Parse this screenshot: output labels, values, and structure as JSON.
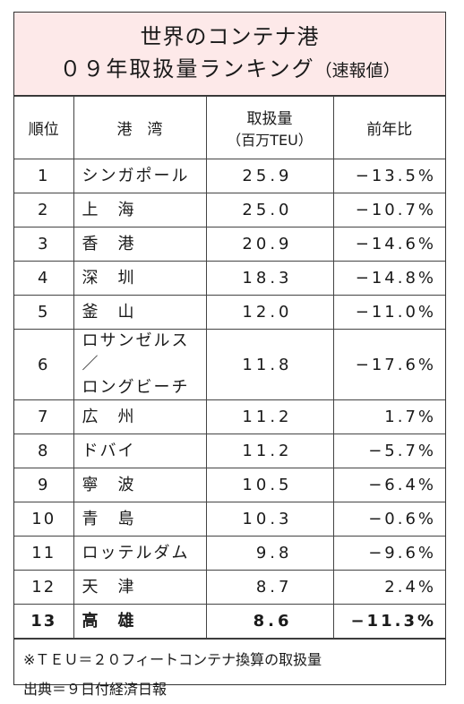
{
  "title": {
    "line1": "世界のコンテナ港",
    "line2_main": "０９年取扱量ランキング",
    "line2_sub": "（速報値）"
  },
  "columns": {
    "rank": "順位",
    "port": "港　湾",
    "teu": "取扱量",
    "teu_unit": "（百万TEU）",
    "yoy": "前年比"
  },
  "rows": [
    {
      "rank": "1",
      "port": "シンガポール",
      "teu": "25.9",
      "yoy": "−13.5%"
    },
    {
      "rank": "2",
      "port": "上　海",
      "teu": "25.0",
      "yoy": "−10.7%"
    },
    {
      "rank": "3",
      "port": "香　港",
      "teu": "20.9",
      "yoy": "−14.6%"
    },
    {
      "rank": "4",
      "port": "深　圳",
      "teu": "18.3",
      "yoy": "−14.8%"
    },
    {
      "rank": "5",
      "port": "釜　山",
      "teu": "12.0",
      "yoy": "−11.0%"
    },
    {
      "rank": "6",
      "port": "ロサンゼルス／",
      "port2": "ロングビーチ",
      "teu": "11.8",
      "yoy": "−17.6%"
    },
    {
      "rank": "7",
      "port": "広　州",
      "teu": "11.2",
      "yoy": "1.7%"
    },
    {
      "rank": "8",
      "port": "ドバイ",
      "teu": "11.2",
      "yoy": "−5.7%"
    },
    {
      "rank": "9",
      "port": "寧　波",
      "teu": "10.5",
      "yoy": "−6.4%"
    },
    {
      "rank": "10",
      "port": "青　島",
      "teu": "10.3",
      "yoy": "−0.6%"
    },
    {
      "rank": "11",
      "port": "ロッテルダム",
      "teu": "9.8",
      "yoy": "−9.6%"
    },
    {
      "rank": "12",
      "port": "天　津",
      "teu": "8.7",
      "yoy": "2.4%"
    },
    {
      "rank": "13",
      "port": "高　雄",
      "teu": "8.6",
      "yoy": "−11.3%"
    }
  ],
  "notes": {
    "line1": "※ＴＥＵ＝２０フィートコンテナ換算の取扱量",
    "line2": "出典＝９日付経済日報"
  }
}
